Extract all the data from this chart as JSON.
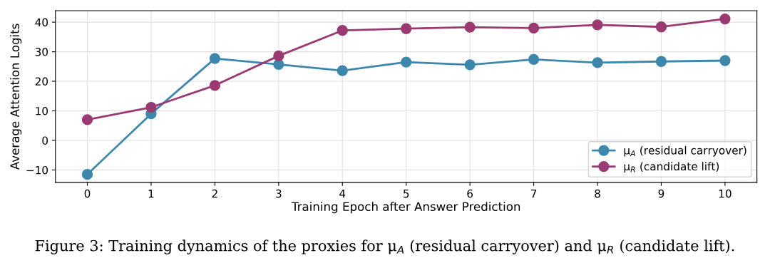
{
  "chart_data": {
    "type": "line",
    "xlabel": "Training Epoch after Answer Prediction",
    "ylabel": "Average Attention Logits",
    "x": [
      0,
      1,
      2,
      3,
      4,
      5,
      6,
      7,
      8,
      9,
      10
    ],
    "series": [
      {
        "name": "μ$_{A}$ (residual carryover)",
        "color": "#3d87ad",
        "values": [
          -11.5,
          9,
          27.7,
          25.7,
          23.6,
          26.5,
          25.6,
          27.4,
          26.3,
          26.7,
          27.0
        ]
      },
      {
        "name": "μ$_{R}$ (candidate lift)",
        "color": "#9b3a72",
        "values": [
          7,
          11.2,
          18.6,
          28.6,
          37.2,
          37.8,
          38.3,
          38.0,
          39.1,
          38.4,
          41.1
        ]
      }
    ],
    "xlim": [
      -0.5,
      10.5
    ],
    "xticks": [
      0,
      1,
      2,
      3,
      4,
      5,
      6,
      7,
      8,
      9,
      10
    ],
    "ylim": [
      -14.2,
      43.9
    ],
    "yticks": [
      {
        "value": -10,
        "label": "−10"
      },
      0,
      10,
      20,
      30,
      40
    ],
    "grid": true,
    "legend": "bottom right",
    "marker": "circle",
    "line_style": "solid",
    "annotations": [
      "Figure 3: Training dynamics of the proxies for μ$_{A}$ (residual carryover) and μ$_{R}$ (candidate lift)."
    ]
  }
}
